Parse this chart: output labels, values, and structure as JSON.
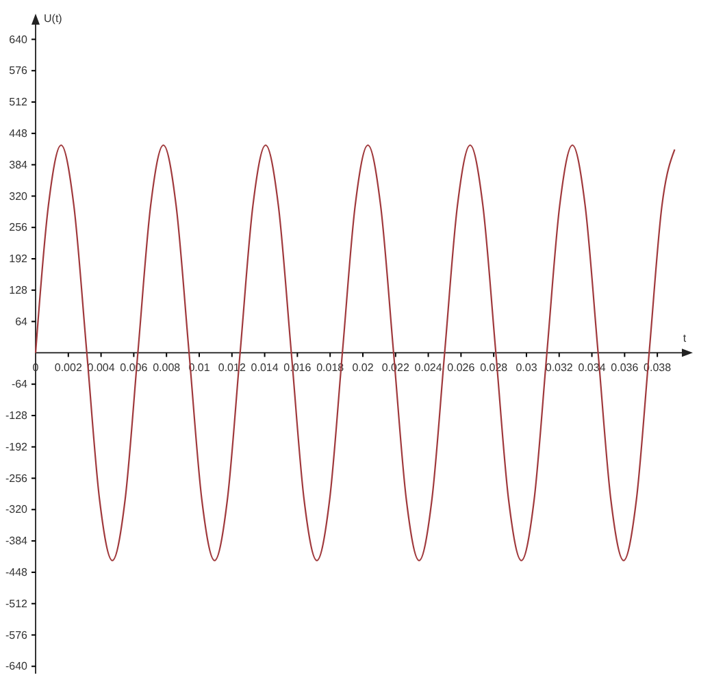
{
  "chart_data": {
    "type": "line",
    "xlabel": "t",
    "ylabel": "U(t)",
    "x": [
      0,
      0.00078,
      0.00156,
      0.00234,
      0.00313,
      0.00391,
      0.00469,
      0.00547,
      0.00625,
      0.00703,
      0.00781,
      0.00859,
      0.00938,
      0.01016,
      0.01094,
      0.01172,
      0.0125,
      0.01328,
      0.01406,
      0.01484,
      0.01563,
      0.01641,
      0.01719,
      0.01797,
      0.01875,
      0.01953,
      0.02031,
      0.02109,
      0.02188,
      0.02266,
      0.02344,
      0.02422,
      0.025,
      0.02578,
      0.02656,
      0.02734,
      0.02813,
      0.02891,
      0.02969,
      0.03047,
      0.03125,
      0.03203,
      0.03281,
      0.03359,
      0.03438,
      0.03516,
      0.03594,
      0.03672,
      0.0375,
      0.03828,
      0.03906
    ],
    "series": [
      {
        "color": "#a0393c",
        "values": [
          0,
          300,
          424,
          300,
          0,
          -300,
          -424,
          -300,
          0,
          300,
          424,
          300,
          0,
          -300,
          -424,
          -300,
          0,
          300,
          424,
          300,
          0,
          -300,
          -424,
          -300,
          0,
          300,
          424,
          300,
          0,
          -300,
          -424,
          -300,
          0,
          300,
          424,
          300,
          0,
          -300,
          -424,
          -300,
          0,
          300,
          424,
          300,
          0,
          -300,
          -424,
          -300,
          0,
          300,
          415
        ]
      }
    ],
    "xlim": [
      0,
      0.0395
    ],
    "ylim": [
      -655,
      670
    ],
    "xticks": [
      0,
      0.002,
      0.004,
      0.006,
      0.008,
      0.01,
      0.012,
      0.014,
      0.016,
      0.018,
      0.02,
      0.022,
      0.024,
      0.026,
      0.028,
      0.03,
      0.032,
      0.034,
      0.036,
      0.038
    ],
    "yticks": [
      -640,
      -576,
      -512,
      -448,
      -384,
      -320,
      -256,
      -192,
      -128,
      -64,
      64,
      128,
      192,
      256,
      320,
      384,
      448,
      512,
      576,
      640
    ],
    "grid": false,
    "marker": "none",
    "line_style": "solid"
  }
}
